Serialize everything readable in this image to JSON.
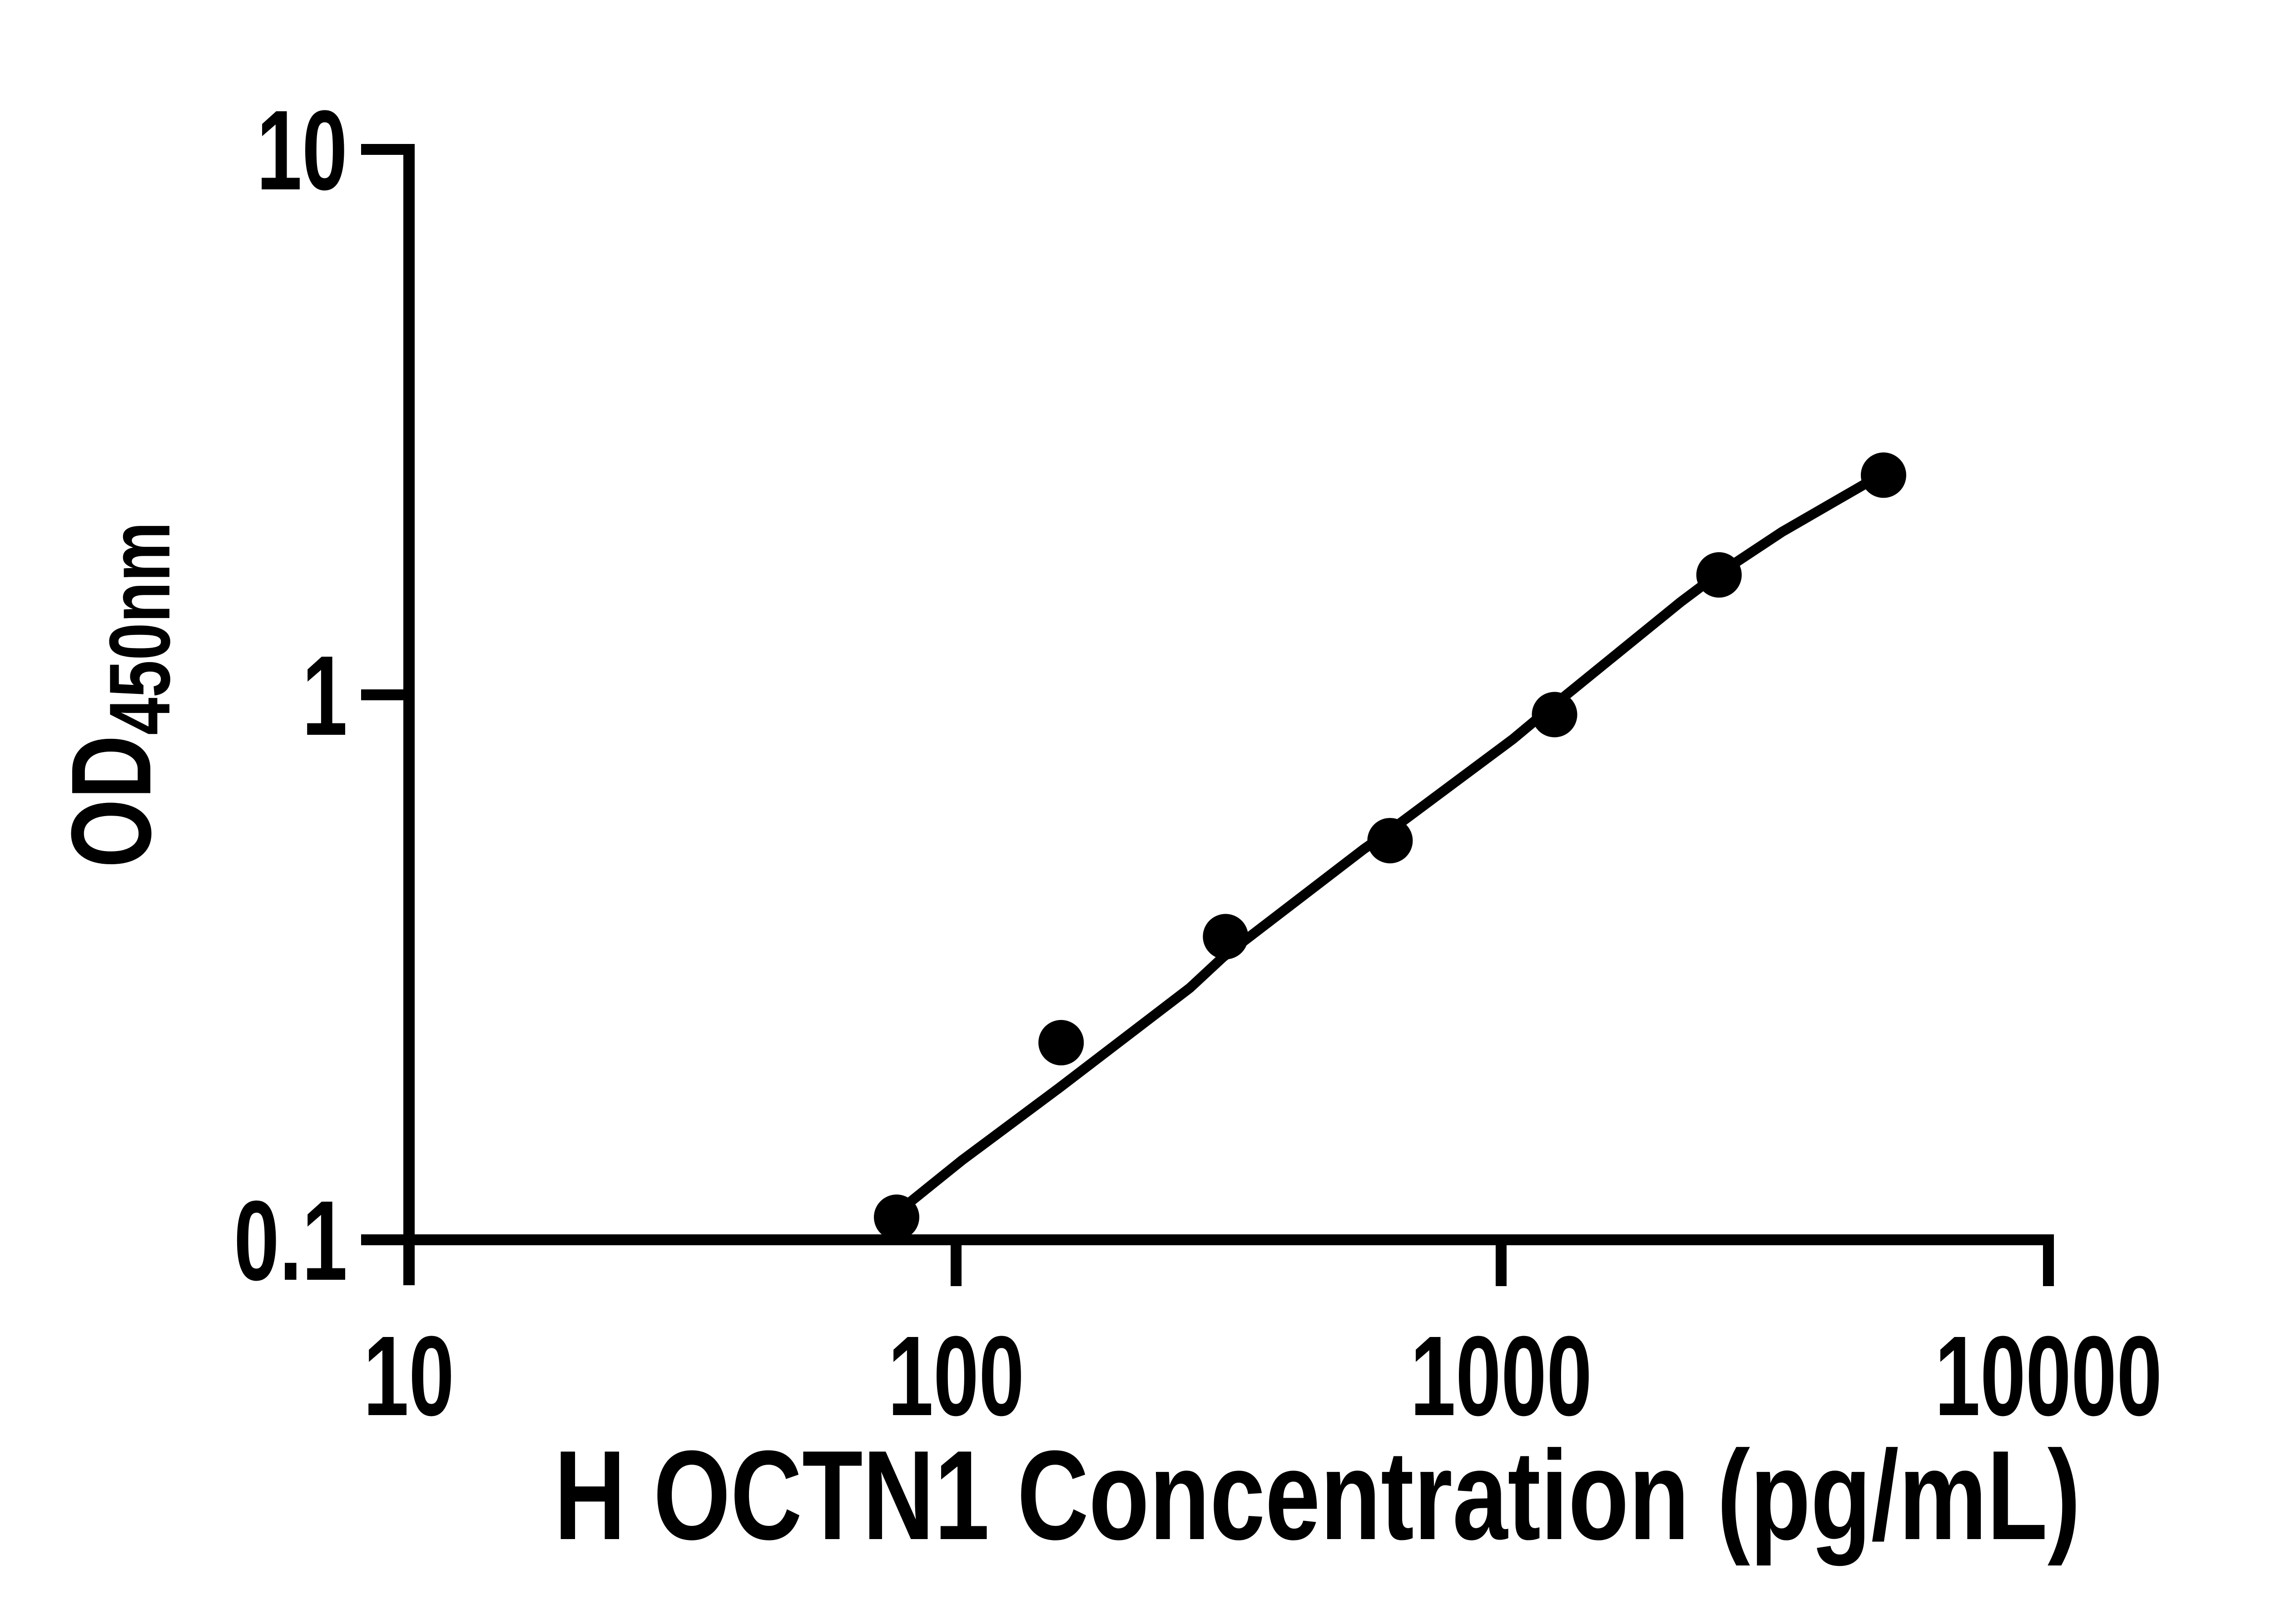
{
  "figure": {
    "background_color": "#ffffff",
    "ink_color": "#000000",
    "description": "ELISA standard curve, log-log axes, black dots with fitted curve"
  },
  "y_axis": {
    "title_main": "OD",
    "title_sub": "450nm",
    "scale": "log",
    "ticks": [
      "10",
      "1",
      "0.1"
    ]
  },
  "x_axis": {
    "title": "H OCTN1 Concentration (pg/mL)",
    "scale": "log",
    "ticks": [
      "10",
      "100",
      "1000",
      "10000"
    ]
  },
  "chart_data": {
    "type": "scatter",
    "title": "",
    "xlabel": "H OCTN1 Concentration (pg/mL)",
    "ylabel": "OD450nm",
    "xscale": "log",
    "yscale": "log",
    "xlim": [
      10,
      10000
    ],
    "ylim": [
      0.1,
      10
    ],
    "grid": false,
    "legend": null,
    "x": [
      78.125,
      156.25,
      312.5,
      625,
      1250,
      2500,
      5000
    ],
    "y": [
      0.11,
      0.23,
      0.36,
      0.54,
      0.92,
      1.66,
      2.53
    ],
    "marker": {
      "shape": "circle",
      "color": "#000000",
      "radius_px": 50
    },
    "line_color": "#000000",
    "fit_curve": {
      "model": "4PL (sampled from drawn fit line)",
      "points": [
        [
          78.1,
          0.112
        ],
        [
          103,
          0.14
        ],
        [
          155,
          0.19
        ],
        [
          269,
          0.29
        ],
        [
          309,
          0.33
        ],
        [
          558,
          0.52
        ],
        [
          620,
          0.56
        ],
        [
          1050,
          0.83
        ],
        [
          1234,
          0.95
        ],
        [
          2126,
          1.48
        ],
        [
          2457,
          1.65
        ],
        [
          3258,
          1.99
        ],
        [
          4900,
          2.52
        ]
      ]
    }
  }
}
